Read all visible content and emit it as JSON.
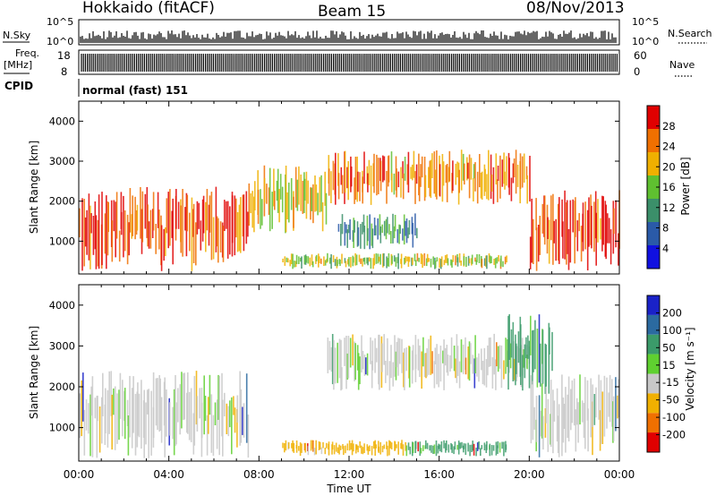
{
  "header": {
    "station": "Hokkaido (fitACF)",
    "beam": "Beam 15",
    "date": "08/Nov/2013"
  },
  "status_panel": {
    "nsky_label": "N.Sky",
    "nsky_ticks": [
      "10^5",
      "10^0"
    ],
    "nsearch_label": "N.Search",
    "nsearch_ticks": [
      "10^5",
      "10^0"
    ],
    "freq_label": "Freq.",
    "freq_unit": "[MHz]",
    "freq_ticks": [
      "18",
      "8"
    ],
    "nave_label": "Nave",
    "nave_ticks": [
      "60",
      "0"
    ],
    "cpid_label": "CPID",
    "cpid_text": "normal (fast) 151"
  },
  "chart_data": [
    {
      "type": "heatmap",
      "title": "",
      "ylabel": "Slant Range [km]",
      "xlabel": "",
      "x_ticks": [
        "00:00",
        "04:00",
        "08:00",
        "12:00",
        "16:00",
        "20:00",
        "00:00"
      ],
      "x_range_hours": [
        0,
        24
      ],
      "y_ticks": [
        1000,
        2000,
        3000,
        4000
      ],
      "ylim": [
        180,
        4500
      ],
      "colorbar": {
        "label": "Power [dB]",
        "ticks": [
          "4",
          "8",
          "12",
          "16",
          "20",
          "24",
          "28"
        ],
        "range": [
          0,
          32
        ],
        "colors": [
          "#1010e0",
          "#2a5aa8",
          "#3b8f6a",
          "#5fc030",
          "#f0b000",
          "#f07000",
          "#e00000"
        ]
      },
      "regions": [
        {
          "name": "night-side E/F echoes",
          "x_hours": [
            0,
            7.5
          ],
          "range_km": [
            250,
            2400
          ],
          "power_db": 28
        },
        {
          "name": "morning ramp",
          "x_hours": [
            7.5,
            11
          ],
          "range_km": [
            1200,
            2900
          ],
          "power_db": 20
        },
        {
          "name": "near-range band",
          "x_hours": [
            9,
            19
          ],
          "range_km": [
            300,
            700
          ],
          "power_db": 18
        },
        {
          "name": "mid-day patch",
          "x_hours": [
            11.5,
            15
          ],
          "range_km": [
            800,
            1700
          ],
          "power_db": 10
        },
        {
          "name": "far-range arc",
          "x_hours": [
            11,
            20
          ],
          "range_km": [
            1900,
            3300
          ],
          "power_db": 24
        },
        {
          "name": "evening echoes",
          "x_hours": [
            20,
            24
          ],
          "range_km": [
            250,
            2300
          ],
          "power_db": 28
        }
      ]
    },
    {
      "type": "heatmap",
      "title": "",
      "ylabel": "Slant Range [km]",
      "xlabel": "Time UT",
      "x_ticks": [
        "00:00",
        "04:00",
        "08:00",
        "12:00",
        "16:00",
        "20:00",
        "00:00"
      ],
      "x_range_hours": [
        0,
        24
      ],
      "y_ticks": [
        1000,
        2000,
        3000,
        4000
      ],
      "ylim": [
        180,
        4500
      ],
      "colorbar": {
        "label": "Velocity [m s⁻¹]",
        "ticks": [
          "200",
          "100",
          "50",
          "15",
          "-15",
          "-50",
          "-100",
          "-200"
        ],
        "colors": [
          "#1a22c8",
          "#2b6aa0",
          "#3b9b6a",
          "#5fd030",
          "#c8c8c8",
          "#f0b000",
          "#f07000",
          "#e00000"
        ]
      },
      "regions": [
        {
          "name": "night-side echoes",
          "x_hours": [
            0,
            7.5
          ],
          "range_km": [
            250,
            2400
          ],
          "velocity": -15
        },
        {
          "name": "near-range band west",
          "x_hours": [
            9,
            14.5
          ],
          "range_km": [
            300,
            700
          ],
          "velocity": -50
        },
        {
          "name": "near-range band east",
          "x_hours": [
            14.5,
            19
          ],
          "range_km": [
            300,
            700
          ],
          "velocity": 50
        },
        {
          "name": "far-range arc",
          "x_hours": [
            11,
            20
          ],
          "range_km": [
            1900,
            3300
          ],
          "velocity": -15
        },
        {
          "name": "evening streak",
          "x_hours": [
            19,
            21
          ],
          "range_km": [
            1800,
            3800
          ],
          "velocity": 50
        },
        {
          "name": "evening echoes",
          "x_hours": [
            20,
            24
          ],
          "range_km": [
            250,
            2300
          ],
          "velocity": -15
        }
      ]
    }
  ]
}
